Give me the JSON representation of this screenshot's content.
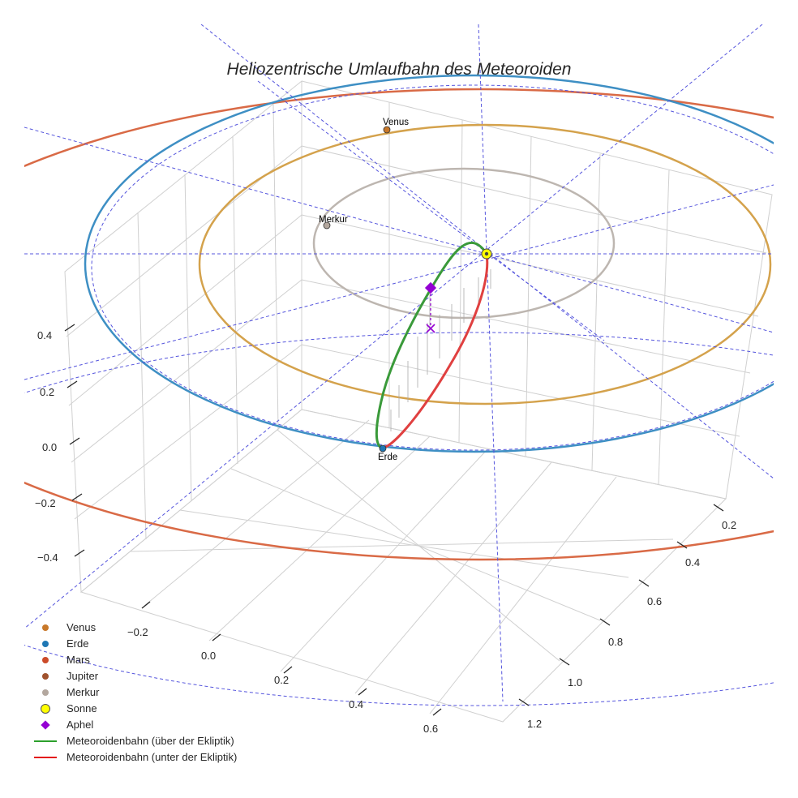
{
  "title": "Heliozentrische Umlaufbahn des Meteoroiden",
  "chart_data": {
    "type": "line",
    "projection": "3d",
    "title": "Heliozentrische Umlaufbahn des Meteoroiden",
    "xlabel": "",
    "ylabel": "",
    "zlabel": "",
    "x_ticks": [
      "−0.2",
      "0.0",
      "0.2",
      "0.4",
      "0.6"
    ],
    "y_ticks": [
      "0.2",
      "0.4",
      "0.6",
      "0.8",
      "1.0",
      "1.2"
    ],
    "z_ticks": [
      "0.4",
      "0.2",
      "0.0",
      "−0.2",
      "−0.4"
    ],
    "grid": true,
    "legend_position": "bottom-left",
    "planet_labels": {
      "venus": "Venus",
      "merkur": "Merkur",
      "erde": "Erde"
    },
    "legend": [
      {
        "key": "venus",
        "label": "Venus",
        "kind": "dot",
        "color": "#c8782a"
      },
      {
        "key": "erde",
        "label": "Erde",
        "kind": "dot",
        "color": "#1f77b4"
      },
      {
        "key": "mars",
        "label": "Mars",
        "kind": "dot",
        "color": "#cc4b2a"
      },
      {
        "key": "jupiter",
        "label": "Jupiter",
        "kind": "dot",
        "color": "#a0522d"
      },
      {
        "key": "merkur",
        "label": "Merkur",
        "kind": "dot",
        "color": "#b3a79e"
      },
      {
        "key": "sonne",
        "label": "Sonne",
        "kind": "sun",
        "color": "#ffff00"
      },
      {
        "key": "aphel",
        "label": "Aphel",
        "kind": "diamond",
        "color": "#9400d3"
      },
      {
        "key": "above",
        "label": "Meteoroidenbahn (über der Ekliptik)",
        "kind": "line",
        "color": "#2ca02c"
      },
      {
        "key": "below",
        "label": "Meteoroidenbahn (unter der Ekliptik)",
        "kind": "line",
        "color": "#e31a1c"
      }
    ],
    "orbit_colors": {
      "merkur": "#bdb6b0",
      "venus": "#d4a24c",
      "erde": "#3e8fc4",
      "mars": "#d96a46",
      "above": "#3a9a3a",
      "below": "#e04040",
      "guides": "#5555dd"
    }
  }
}
